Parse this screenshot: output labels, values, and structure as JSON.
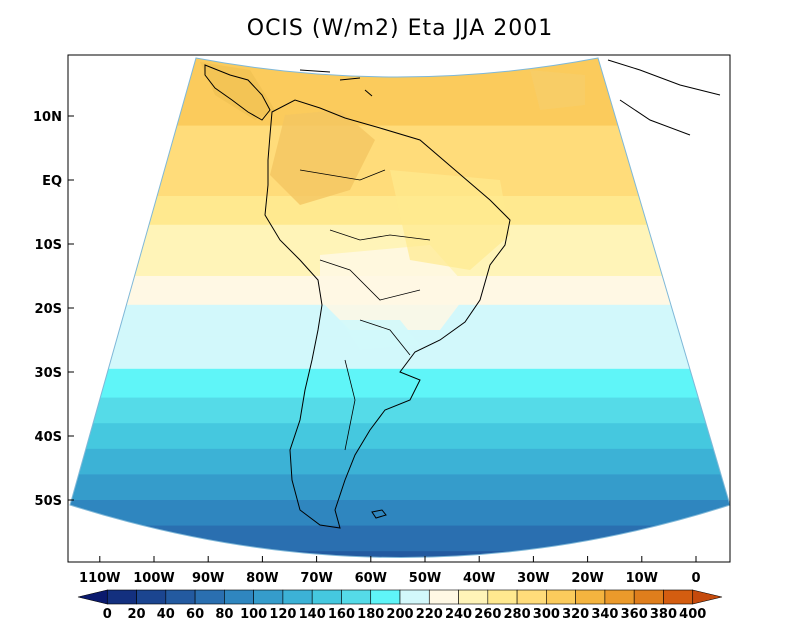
{
  "title": "OCIS (W/m2) Eta JJA 2001",
  "lat_labels": [
    "10N",
    "EQ",
    "10S",
    "20S",
    "30S",
    "40S",
    "50S"
  ],
  "lon_labels": [
    "110W",
    "100W",
    "90W",
    "80W",
    "70W",
    "60W",
    "50W",
    "40W",
    "30W",
    "20W",
    "10W",
    "0"
  ],
  "colorbar": {
    "levels": [
      "0",
      "20",
      "40",
      "60",
      "80",
      "100",
      "120",
      "140",
      "160",
      "180",
      "200",
      "220",
      "240",
      "260",
      "280",
      "300",
      "320",
      "340",
      "360",
      "380",
      "400"
    ],
    "colors": [
      "#0a1a6e",
      "#13307f",
      "#1b4590",
      "#235aa0",
      "#2a6fb0",
      "#2f86bf",
      "#359ccb",
      "#3cb2d6",
      "#45c8df",
      "#55dbe8",
      "#5ff5f8",
      "#d2f8fb",
      "#fff8e4",
      "#fff4b8",
      "#ffe98f",
      "#ffdc7a",
      "#fbcb5c",
      "#f4b43f",
      "#eb9a2b",
      "#df7e1c",
      "#d45d10",
      "#c54a0c"
    ]
  },
  "chart_data": {
    "type": "heatmap",
    "title": "OCIS (W/m2) Eta JJA 2001",
    "variable": "OCIS",
    "units": "W/m2",
    "model": "Eta",
    "season": "JJA",
    "year": "2001",
    "x_ticks": [
      "110W",
      "100W",
      "90W",
      "80W",
      "70W",
      "60W",
      "50W",
      "40W",
      "30W",
      "20W",
      "10W",
      "0"
    ],
    "y_ticks": [
      "10N",
      "EQ",
      "10S",
      "20S",
      "30S",
      "40S",
      "50S"
    ],
    "lon_range": [
      -118,
      7
    ],
    "lat_range": [
      -60,
      13
    ],
    "zonal_bands": [
      {
        "lat": 12,
        "value": 300
      },
      {
        "lat": 5,
        "value": 290
      },
      {
        "lat": 0,
        "value": 280
      },
      {
        "lat": -5,
        "value": 270
      },
      {
        "lat": -9,
        "value": 250
      },
      {
        "lat": -13,
        "value": 240
      },
      {
        "lat": -17,
        "value": 235
      },
      {
        "lat": -22,
        "value": 215
      },
      {
        "lat": -27,
        "value": 205
      },
      {
        "lat": -32,
        "value": 185
      },
      {
        "lat": -36,
        "value": 165
      },
      {
        "lat": -40,
        "value": 150
      },
      {
        "lat": -44,
        "value": 130
      },
      {
        "lat": -48,
        "value": 110
      },
      {
        "lat": -52,
        "value": 95
      },
      {
        "lat": -56,
        "value": 70
      },
      {
        "lat": -60,
        "value": 50
      }
    ],
    "colorbar_levels": [
      0,
      20,
      40,
      60,
      80,
      100,
      120,
      140,
      160,
      180,
      200,
      220,
      240,
      260,
      280,
      300,
      320,
      340,
      360,
      380,
      400
    ]
  }
}
